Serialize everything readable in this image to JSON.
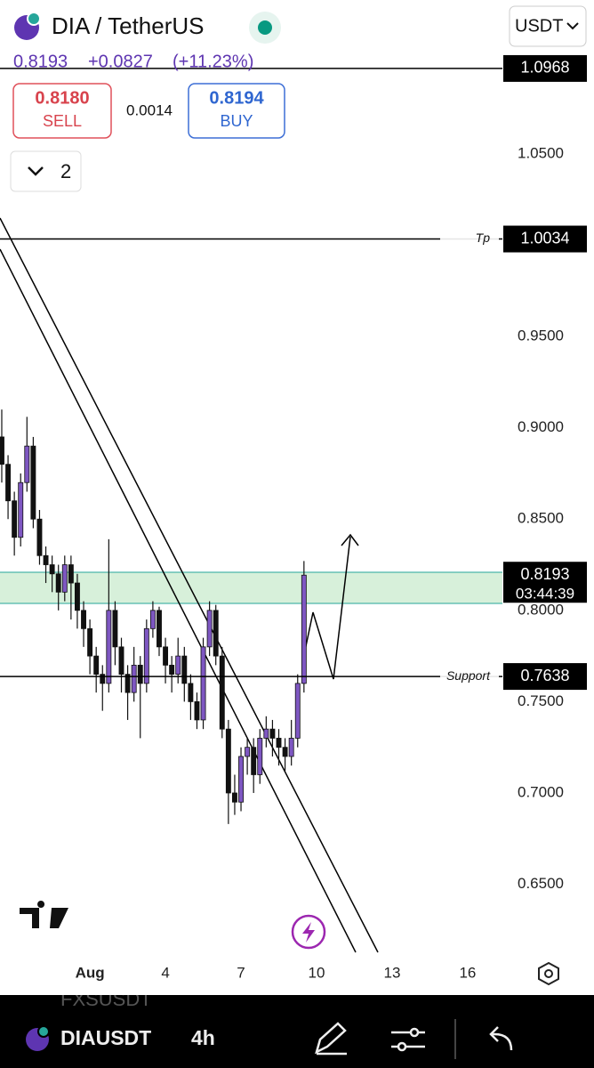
{
  "header": {
    "symbol": "DIA / TetherUS",
    "currency": "USDT",
    "last": "0.8193",
    "change": "+0.0827",
    "change_pct": "(+11.23%)",
    "sell_price": "0.8180",
    "sell": "SELL",
    "spread": "0.0014",
    "buy_price": "0.8194",
    "buy": "BUY",
    "indicators": "2"
  },
  "toolbar": {
    "prev_symbol": "FXSUSDT",
    "symbol": "DIAUSDT",
    "interval": "4h"
  },
  "chart_data": {
    "type": "candlestick",
    "x": [
      -2.5,
      -2.25,
      -2,
      -1.75,
      -1.5,
      -1.25,
      -1,
      -0.75,
      -0.5,
      -0.25,
      0,
      0.25,
      0.5,
      0.75,
      1,
      1.25,
      1.5,
      1.75,
      2,
      2.25,
      2.5,
      2.75,
      3,
      3.25,
      3.5,
      3.75,
      4,
      4.25,
      4.5,
      4.75,
      5,
      5.25,
      5.5,
      5.75,
      6,
      6.25,
      6.5,
      6.75,
      7,
      7.25,
      7.5,
      7.75,
      8,
      8.25,
      8.5,
      8.75,
      9,
      9.25,
      9.5
    ],
    "open": [
      0.895,
      0.88,
      0.86,
      0.84,
      0.87,
      0.89,
      0.85,
      0.83,
      0.825,
      0.82,
      0.81,
      0.825,
      0.815,
      0.8,
      0.79,
      0.775,
      0.765,
      0.76,
      0.8,
      0.78,
      0.765,
      0.755,
      0.77,
      0.76,
      0.79,
      0.8,
      0.78,
      0.77,
      0.765,
      0.775,
      0.76,
      0.75,
      0.74,
      0.78,
      0.8,
      0.775,
      0.735,
      0.7,
      0.695,
      0.72,
      0.725,
      0.71,
      0.73,
      0.735,
      0.73,
      0.725,
      0.72,
      0.73,
      0.76
    ],
    "high": [
      0.91,
      0.885,
      0.865,
      0.875,
      0.906,
      0.895,
      0.855,
      0.835,
      0.83,
      0.825,
      0.83,
      0.83,
      0.82,
      0.805,
      0.795,
      0.78,
      0.77,
      0.839,
      0.805,
      0.785,
      0.77,
      0.78,
      0.775,
      0.795,
      0.805,
      0.802,
      0.785,
      0.775,
      0.785,
      0.78,
      0.765,
      0.755,
      0.785,
      0.805,
      0.803,
      0.78,
      0.74,
      0.71,
      0.725,
      0.73,
      0.73,
      0.735,
      0.742,
      0.74,
      0.735,
      0.73,
      0.74,
      0.765,
      0.827
    ],
    "low": [
      0.87,
      0.85,
      0.83,
      0.835,
      0.865,
      0.845,
      0.825,
      0.815,
      0.81,
      0.8,
      0.805,
      0.795,
      0.79,
      0.78,
      0.765,
      0.755,
      0.745,
      0.755,
      0.77,
      0.755,
      0.74,
      0.75,
      0.73,
      0.755,
      0.785,
      0.775,
      0.76,
      0.755,
      0.76,
      0.75,
      0.74,
      0.735,
      0.735,
      0.775,
      0.77,
      0.73,
      0.683,
      0.688,
      0.69,
      0.71,
      0.7,
      0.705,
      0.725,
      0.72,
      0.715,
      0.712,
      0.715,
      0.725,
      0.755
    ],
    "close": [
      0.88,
      0.86,
      0.84,
      0.87,
      0.89,
      0.85,
      0.83,
      0.825,
      0.82,
      0.81,
      0.825,
      0.815,
      0.8,
      0.79,
      0.775,
      0.765,
      0.76,
      0.8,
      0.78,
      0.765,
      0.755,
      0.77,
      0.76,
      0.79,
      0.8,
      0.78,
      0.77,
      0.765,
      0.775,
      0.76,
      0.75,
      0.74,
      0.78,
      0.8,
      0.775,
      0.735,
      0.7,
      0.695,
      0.72,
      0.725,
      0.71,
      0.73,
      0.735,
      0.73,
      0.725,
      0.72,
      0.73,
      0.76,
      0.8193
    ],
    "up_color": "#7e57c2",
    "down_color": "#111111",
    "countdown": "03:44:39",
    "levels": [
      {
        "value": 1.0968
      },
      {
        "label": "Tp",
        "value": 1.0034
      },
      {
        "label": "Support",
        "value": 0.7638
      }
    ],
    "xlim": [
      -2.57,
      17.38
    ],
    "ylim": [
      0.6103,
      1.1343
    ],
    "xticks": [
      {
        "value": 1,
        "label": "Aug"
      },
      4,
      7,
      10,
      13,
      16
    ],
    "yticks": [
      {
        "value": 1.05,
        "label": "1.0500"
      },
      {
        "value": 0.95,
        "label": "0.9500"
      },
      {
        "value": 0.9,
        "label": "0.9000"
      },
      {
        "value": 0.85,
        "label": "0.8500"
      },
      {
        "value": 0.8,
        "label": "0.8000"
      },
      {
        "value": 0.75,
        "label": "0.7500"
      },
      {
        "value": 0.7,
        "label": "0.7000"
      },
      {
        "value": 0.65,
        "label": "0.6500"
      }
    ],
    "grid": false
  }
}
